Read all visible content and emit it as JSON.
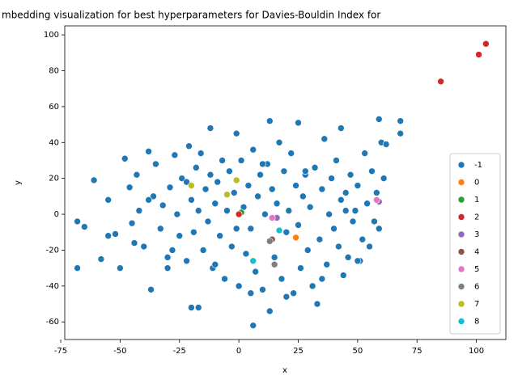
{
  "chart_data": {
    "type": "scatter",
    "title": "mbedding visualization for best hyperparameters for Davies-Bouldin Index for",
    "x_label": "x",
    "y_label": "y",
    "xlim": [
      -73.3,
      112.4
    ],
    "ylim": [
      -69.8,
      105
    ],
    "xticks": [
      -75,
      -50,
      -25,
      0,
      25,
      50,
      75,
      100
    ],
    "yticks": [
      -60,
      -40,
      -20,
      0,
      20,
      40,
      60,
      80,
      100
    ],
    "legend": "lower right",
    "series": [
      {
        "name": "-1",
        "color": "#1f77b4",
        "x": [
          -68,
          -68,
          -65,
          -61,
          -58,
          -55,
          -52,
          -50,
          -48,
          -46,
          -45,
          -43,
          -42,
          -40,
          -38,
          -37,
          -36,
          -35,
          -33,
          -32,
          -30,
          -29,
          -28,
          -27,
          -26,
          -25,
          -24,
          -22,
          -21,
          -20,
          -20,
          -19,
          -18,
          -17,
          -17,
          -16,
          -15,
          -14,
          -13,
          -12,
          -12,
          -11,
          -10,
          -9,
          -8,
          -7,
          -6,
          -5,
          -4,
          -3,
          -2,
          -1,
          -1,
          0,
          1,
          2,
          3,
          4,
          5,
          6,
          6,
          7,
          8,
          9,
          10,
          11,
          12,
          13,
          13,
          14,
          15,
          16,
          17,
          18,
          19,
          20,
          21,
          22,
          23,
          24,
          25,
          25,
          26,
          27,
          28,
          29,
          30,
          31,
          32,
          33,
          34,
          35,
          36,
          37,
          38,
          39,
          40,
          41,
          42,
          43,
          43,
          44,
          45,
          46,
          47,
          48,
          49,
          50,
          51,
          52,
          53,
          54,
          55,
          56,
          57,
          58,
          59,
          59,
          60,
          61,
          62,
          68,
          68,
          -44,
          -30,
          -10,
          5,
          20,
          35,
          50,
          -55,
          -38,
          -22,
          10,
          28,
          45
        ],
        "values": [
          -4,
          -30,
          -7,
          19,
          -25,
          8,
          -11,
          -30,
          31,
          15,
          -5,
          22,
          2,
          -18,
          35,
          -42,
          10,
          28,
          -8,
          5,
          -30,
          15,
          -20,
          33,
          0,
          -12,
          20,
          -26,
          38,
          -52,
          8,
          -10,
          26,
          -52,
          2,
          34,
          -20,
          14,
          -4,
          48,
          22,
          -30,
          6,
          18,
          -12,
          30,
          -36,
          2,
          24,
          -18,
          12,
          45,
          -8,
          -40,
          30,
          4,
          -22,
          16,
          -8,
          -62,
          36,
          -32,
          10,
          22,
          -42,
          0,
          28,
          52,
          -54,
          14,
          -24,
          6,
          40,
          -36,
          24,
          -10,
          2,
          34,
          -44,
          16,
          -6,
          51,
          -30,
          10,
          22,
          -20,
          4,
          -40,
          26,
          -50,
          -14,
          14,
          42,
          -28,
          0,
          20,
          -8,
          30,
          -18,
          48,
          8,
          -34,
          12,
          -24,
          22,
          -4,
          2,
          16,
          -26,
          -14,
          34,
          6,
          -18,
          24,
          -4,
          12,
          53,
          -8,
          40,
          20,
          39,
          52,
          45,
          -16,
          -24,
          -28,
          -44,
          -46,
          -36,
          -26,
          -12,
          8,
          18,
          28,
          24,
          2
        ]
      },
      {
        "name": "0",
        "color": "#ff7f0e",
        "x": [
          24
        ],
        "values": [
          -13
        ]
      },
      {
        "name": "1",
        "color": "#2ca02c",
        "x": [
          1
        ],
        "values": [
          1
        ]
      },
      {
        "name": "2",
        "color": "#d62728",
        "x": [
          85,
          101,
          104,
          0
        ],
        "values": [
          74,
          89,
          95,
          0
        ]
      },
      {
        "name": "3",
        "color": "#9467bd",
        "x": [
          59,
          16
        ],
        "values": [
          7,
          -2
        ]
      },
      {
        "name": "4",
        "color": "#8c564b",
        "x": [
          14
        ],
        "values": [
          -14
        ]
      },
      {
        "name": "5",
        "color": "#e377c2",
        "x": [
          14,
          58
        ],
        "values": [
          -2,
          8
        ]
      },
      {
        "name": "6",
        "color": "#7f7f7f",
        "x": [
          15,
          13
        ],
        "values": [
          -28,
          -15
        ]
      },
      {
        "name": "7",
        "color": "#bcbd22",
        "x": [
          -20,
          -5,
          -1
        ],
        "values": [
          16,
          11,
          19
        ]
      },
      {
        "name": "8",
        "color": "#17becf",
        "x": [
          6,
          17
        ],
        "values": [
          -26,
          -9
        ]
      }
    ]
  }
}
